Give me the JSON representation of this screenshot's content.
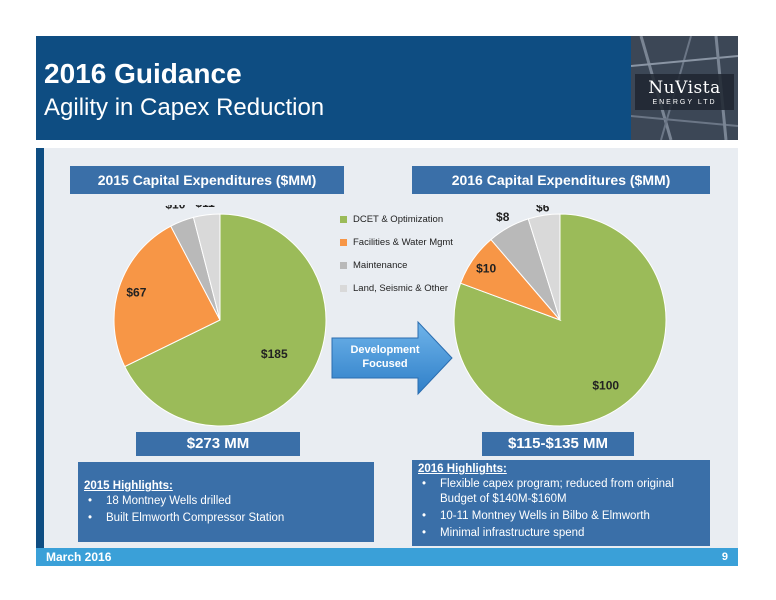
{
  "header": {
    "title": "2016 Guidance",
    "subtitle": "Agility in Capex Reduction"
  },
  "logo": {
    "name": "NuVista",
    "sub": "ENERGY LTD"
  },
  "legend_labels": [
    "DCET & Optimization",
    "Facilities & Water Mgmt",
    "Maintenance",
    "Land, Seismic & Other"
  ],
  "colors": {
    "dcet": "#9bbb59",
    "facilities": "#f79646",
    "maintenance": "#b9b9b9",
    "land": "#d9d9d9",
    "header": "#0e4d82",
    "box": "#3a6fa8"
  },
  "chart_data": [
    {
      "type": "pie",
      "title": "2015 Capital Expenditures ($MM)",
      "labels": [
        "DCET & Optimization",
        "Facilities & Water Mgmt",
        "Maintenance",
        "Land, Seismic & Other"
      ],
      "values": [
        185,
        67,
        10,
        11
      ],
      "value_labels": [
        "$185",
        "$67",
        "$10",
        "$11"
      ],
      "total": "$273 MM"
    },
    {
      "type": "pie",
      "title": "2016 Capital Expenditures ($MM)",
      "labels": [
        "DCET & Optimization",
        "Facilities & Water Mgmt",
        "Maintenance",
        "Land, Seismic & Other"
      ],
      "values": [
        100,
        10,
        8,
        6
      ],
      "value_labels": [
        "$100",
        "$10",
        "$8",
        "$6"
      ],
      "total": "$115-$135 MM"
    }
  ],
  "arrow": {
    "line1": "Development",
    "line2": "Focused"
  },
  "highlights_2015": {
    "title": "2015 Highlights:",
    "items": [
      "18 Montney Wells drilled",
      "Built Elmworth Compressor Station"
    ]
  },
  "highlights_2016": {
    "title": "2016 Highlights:",
    "items": [
      "Flexible capex program; reduced from original Budget of $140M-$160M",
      "10-11 Montney Wells in Bilbo & Elmworth",
      "Minimal infrastructure spend"
    ]
  },
  "footer": {
    "date": "March 2016",
    "page": "9"
  }
}
